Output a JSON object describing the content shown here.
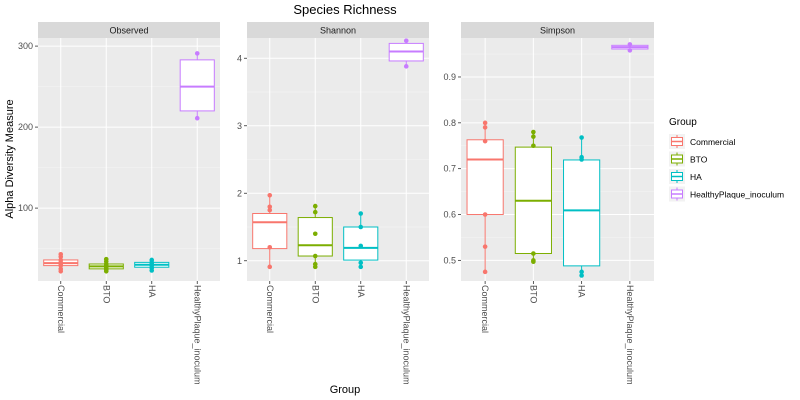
{
  "chart_data": {
    "type": "box",
    "title": "Species Richness",
    "xlabel": "Group",
    "ylabel": "Alpha Diversity Measure",
    "categories": [
      "Commercial",
      "BTO",
      "HA",
      "HealthyPlaque_inoculum"
    ],
    "colors": {
      "Commercial": "#F8766D",
      "BTO": "#7CAE00",
      "HA": "#00BFC4",
      "HealthyPlaque_inoculum": "#C77CFF"
    },
    "legend": {
      "title": "Group",
      "position": "right",
      "entries": [
        "Commercial",
        "BTO",
        "HA",
        "HealthyPlaque_inoculum"
      ]
    },
    "panels": [
      {
        "name": "Observed",
        "ylim": [
          10,
          310
        ],
        "yticks": [
          100,
          200,
          300
        ],
        "boxes": [
          {
            "group": "Commercial",
            "min": 22,
            "q1": 29,
            "median": 32,
            "q3": 36,
            "max": 43,
            "points": [
              22,
              25,
              29,
              31,
              33,
              36,
              40,
              43
            ]
          },
          {
            "group": "BTO",
            "min": 22,
            "q1": 25,
            "median": 28,
            "q3": 31,
            "max": 37,
            "points": [
              22,
              24,
              26,
              29,
              31,
              34,
              37
            ]
          },
          {
            "group": "HA",
            "min": 23,
            "q1": 27,
            "median": 30,
            "q3": 33,
            "max": 36,
            "points": [
              23,
              26,
              29,
              31,
              33,
              36
            ]
          },
          {
            "group": "HealthyPlaque_inoculum",
            "min": 211,
            "q1": 220,
            "median": 250,
            "q3": 283,
            "max": 291,
            "points": [
              211,
              291
            ]
          }
        ]
      },
      {
        "name": "Shannon",
        "ylim": [
          0.7,
          4.3
        ],
        "yticks": [
          1,
          2,
          3,
          4
        ],
        "boxes": [
          {
            "group": "Commercial",
            "min": 0.91,
            "q1": 1.18,
            "median": 1.57,
            "q3": 1.7,
            "max": 1.97,
            "points": [
              0.91,
              1.2,
              1.75,
              1.8,
              1.97
            ]
          },
          {
            "group": "BTO",
            "min": 0.91,
            "q1": 1.07,
            "median": 1.23,
            "q3": 1.64,
            "max": 1.81,
            "points": [
              0.91,
              0.95,
              1.07,
              1.4,
              1.72,
              1.81
            ]
          },
          {
            "group": "HA",
            "min": 0.91,
            "q1": 1.01,
            "median": 1.19,
            "q3": 1.5,
            "max": 1.7,
            "points": [
              0.91,
              0.97,
              1.22,
              1.5,
              1.7
            ]
          },
          {
            "group": "HealthyPlaque_inoculum",
            "min": 3.88,
            "q1": 3.96,
            "median": 4.1,
            "q3": 4.22,
            "max": 4.26,
            "points": [
              3.88,
              4.26
            ]
          }
        ]
      },
      {
        "name": "Simpson",
        "ylim": [
          0.455,
          0.985
        ],
        "yticks": [
          0.5,
          0.6,
          0.7,
          0.8,
          0.9
        ],
        "boxes": [
          {
            "group": "Commercial",
            "min": 0.475,
            "q1": 0.6,
            "median": 0.72,
            "q3": 0.763,
            "max": 0.8,
            "points": [
              0.475,
              0.53,
              0.6,
              0.76,
              0.79,
              0.8
            ]
          },
          {
            "group": "BTO",
            "min": 0.497,
            "q1": 0.515,
            "median": 0.63,
            "q3": 0.747,
            "max": 0.78,
            "points": [
              0.497,
              0.5,
              0.515,
              0.75,
              0.77,
              0.78
            ]
          },
          {
            "group": "HA",
            "min": 0.467,
            "q1": 0.488,
            "median": 0.609,
            "q3": 0.719,
            "max": 0.768,
            "points": [
              0.467,
              0.475,
              0.72,
              0.725,
              0.768
            ]
          },
          {
            "group": "HealthyPlaque_inoculum",
            "min": 0.958,
            "q1": 0.961,
            "median": 0.965,
            "q3": 0.969,
            "max": 0.971,
            "points": [
              0.958,
              0.971
            ]
          }
        ]
      }
    ]
  }
}
